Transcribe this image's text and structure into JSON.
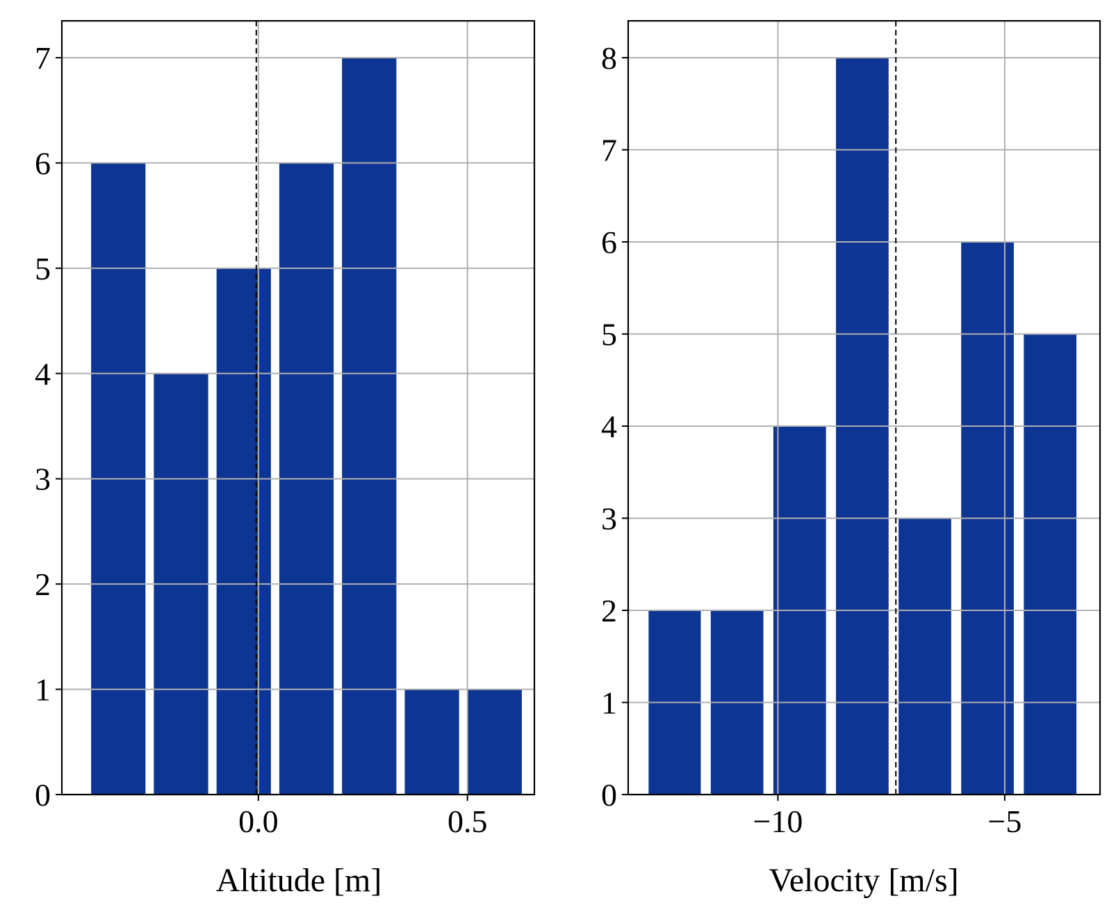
{
  "chart_data": [
    {
      "type": "bar",
      "title": "",
      "xlabel": "Altitude [m]",
      "ylabel": "",
      "bins": [
        {
          "x0": -0.4,
          "x1": -0.27,
          "count": 6
        },
        {
          "x0": -0.25,
          "x1": -0.12,
          "count": 4
        },
        {
          "x0": -0.1,
          "x1": 0.03,
          "count": 5
        },
        {
          "x0": 0.05,
          "x1": 0.18,
          "count": 6
        },
        {
          "x0": 0.2,
          "x1": 0.33,
          "count": 7
        },
        {
          "x0": 0.35,
          "x1": 0.48,
          "count": 1
        },
        {
          "x0": 0.5,
          "x1": 0.63,
          "count": 1
        }
      ],
      "xlim": [
        -0.47,
        0.66
      ],
      "ylim": [
        0,
        7.35
      ],
      "xticks": [
        0.0,
        0.5
      ],
      "xtick_labels": [
        "0.0",
        "0.5"
      ],
      "yticks": [
        0,
        1,
        2,
        3,
        4,
        5,
        6,
        7
      ],
      "ytick_labels": [
        "0",
        "1",
        "2",
        "3",
        "4",
        "5",
        "6",
        "7"
      ],
      "reference_line_x": -0.005,
      "bar_color": "#0d3593",
      "grid": true
    },
    {
      "type": "bar",
      "title": "",
      "xlabel": "Velocity [m/s]",
      "ylabel": "",
      "bins": [
        {
          "x0": -12.85,
          "x1": -11.7,
          "count": 2
        },
        {
          "x0": -11.48,
          "x1": -10.32,
          "count": 2
        },
        {
          "x0": -10.1,
          "x1": -8.94,
          "count": 4
        },
        {
          "x0": -8.72,
          "x1": -7.56,
          "count": 8
        },
        {
          "x0": -7.34,
          "x1": -6.18,
          "count": 3
        },
        {
          "x0": -5.96,
          "x1": -4.8,
          "count": 6
        },
        {
          "x0": -4.58,
          "x1": -3.42,
          "count": 5
        }
      ],
      "xlim": [
        -13.3,
        -2.9
      ],
      "ylim": [
        0,
        8.4
      ],
      "xticks": [
        -10,
        -5
      ],
      "xtick_labels": [
        "−10",
        "−5"
      ],
      "yticks": [
        0,
        1,
        2,
        3,
        4,
        5,
        6,
        7,
        8
      ],
      "ytick_labels": [
        "0",
        "1",
        "2",
        "3",
        "4",
        "5",
        "6",
        "7",
        "8"
      ],
      "reference_line_x": -7.4,
      "bar_color": "#0d3593",
      "grid": true
    }
  ]
}
